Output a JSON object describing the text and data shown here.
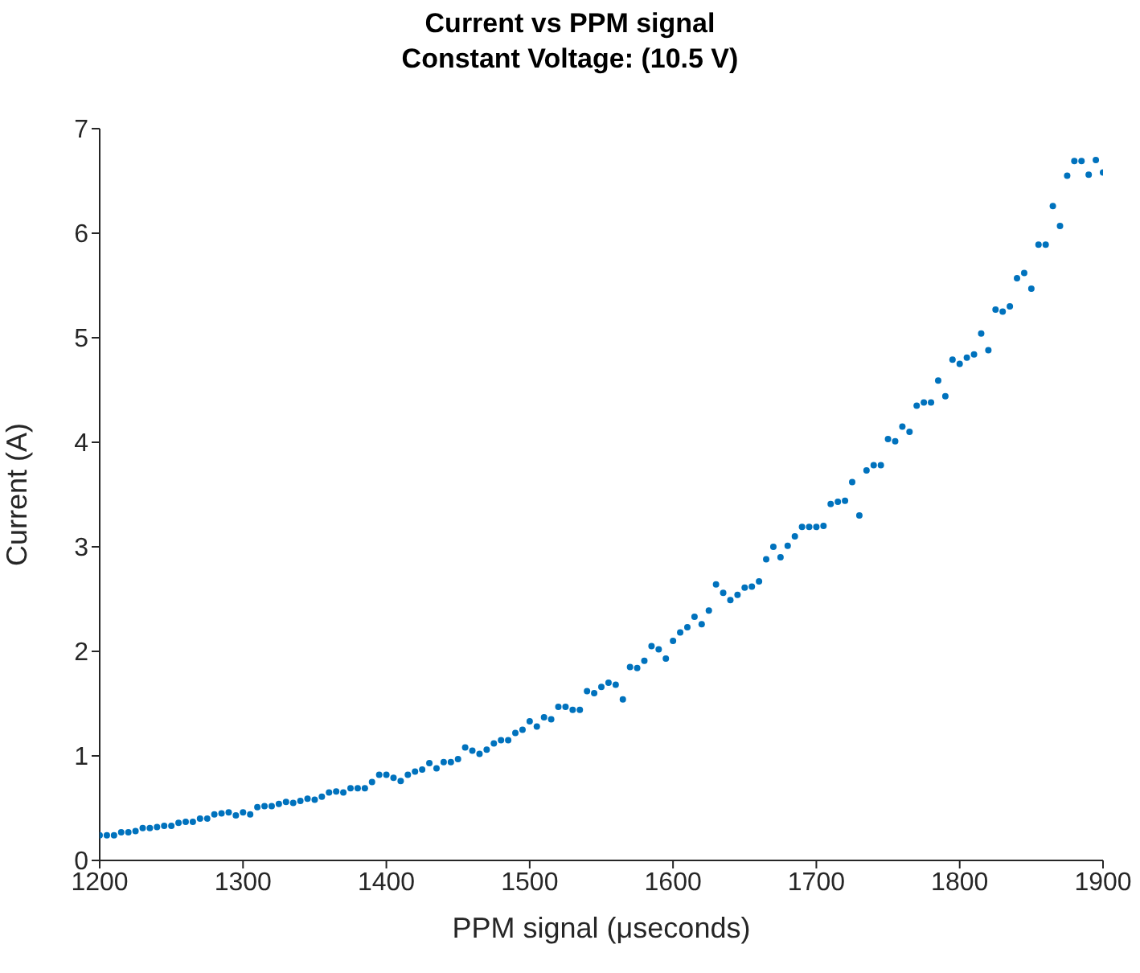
{
  "chart_data": {
    "type": "scatter",
    "title": "Current vs PPM signal",
    "subtitle": "Constant Voltage: (10.5 V)",
    "xlabel": "PPM signal (μseconds)",
    "ylabel": "Current (A)",
    "x": [
      1200,
      1205,
      1210,
      1215,
      1220,
      1225,
      1230,
      1235,
      1240,
      1245,
      1250,
      1255,
      1260,
      1265,
      1270,
      1275,
      1280,
      1285,
      1290,
      1295,
      1300,
      1305,
      1310,
      1315,
      1320,
      1325,
      1330,
      1335,
      1340,
      1345,
      1350,
      1355,
      1360,
      1365,
      1370,
      1375,
      1380,
      1385,
      1390,
      1395,
      1400,
      1405,
      1410,
      1415,
      1420,
      1425,
      1430,
      1435,
      1440,
      1445,
      1450,
      1455,
      1460,
      1465,
      1470,
      1475,
      1480,
      1485,
      1490,
      1495,
      1500,
      1505,
      1510,
      1515,
      1520,
      1525,
      1530,
      1535,
      1540,
      1545,
      1550,
      1555,
      1560,
      1565,
      1570,
      1575,
      1580,
      1585,
      1590,
      1595,
      1600,
      1605,
      1610,
      1615,
      1620,
      1625,
      1630,
      1635,
      1640,
      1645,
      1650,
      1655,
      1660,
      1665,
      1670,
      1675,
      1680,
      1685,
      1690,
      1695,
      1700,
      1705,
      1710,
      1715,
      1720,
      1725,
      1730,
      1735,
      1740,
      1745,
      1750,
      1755,
      1760,
      1765,
      1770,
      1775,
      1780,
      1785,
      1790,
      1795,
      1800,
      1805,
      1810,
      1815,
      1820,
      1825,
      1830,
      1835,
      1840,
      1845,
      1850,
      1855,
      1860,
      1865,
      1870,
      1875,
      1880,
      1885,
      1890,
      1895,
      1900
    ],
    "series": [
      {
        "color": "#0072bd",
        "values": [
          0.24,
          0.24,
          0.24,
          0.27,
          0.27,
          0.28,
          0.31,
          0.31,
          0.32,
          0.33,
          0.33,
          0.36,
          0.37,
          0.37,
          0.4,
          0.4,
          0.44,
          0.45,
          0.46,
          0.43,
          0.46,
          0.44,
          0.51,
          0.52,
          0.52,
          0.54,
          0.56,
          0.55,
          0.57,
          0.59,
          0.58,
          0.61,
          0.65,
          0.66,
          0.65,
          0.69,
          0.69,
          0.69,
          0.75,
          0.82,
          0.82,
          0.79,
          0.76,
          0.82,
          0.85,
          0.87,
          0.93,
          0.88,
          0.94,
          0.94,
          0.97,
          1.08,
          1.05,
          1.02,
          1.06,
          1.12,
          1.15,
          1.15,
          1.22,
          1.25,
          1.33,
          1.28,
          1.37,
          1.35,
          1.47,
          1.47,
          1.44,
          1.44,
          1.62,
          1.6,
          1.66,
          1.7,
          1.68,
          1.54,
          1.85,
          1.84,
          1.91,
          2.05,
          2.02,
          1.93,
          2.1,
          2.18,
          2.23,
          2.33,
          2.26,
          2.39,
          2.64,
          2.56,
          2.49,
          2.54,
          2.61,
          2.62,
          2.67,
          2.88,
          3.0,
          2.9,
          3.01,
          3.1,
          3.19,
          3.19,
          3.19,
          3.2,
          3.41,
          3.43,
          3.44,
          3.62,
          3.3,
          3.73,
          3.78,
          3.78,
          4.03,
          4.01,
          4.15,
          4.1,
          4.35,
          4.38,
          4.38,
          4.59,
          4.44,
          4.79,
          4.75,
          4.81,
          4.84,
          5.04,
          4.88,
          5.27,
          5.25,
          5.3,
          5.57,
          5.62,
          5.47,
          5.89,
          5.89,
          6.26,
          6.07,
          6.55,
          6.69,
          6.69,
          6.56,
          6.7,
          6.58
        ]
      }
    ],
    "xlim": [
      1200,
      1900
    ],
    "xticks": [
      1200,
      1300,
      1400,
      1500,
      1600,
      1700,
      1800,
      1900
    ],
    "ylim": [
      0,
      7
    ],
    "yticks": [
      0,
      1,
      2,
      3,
      4,
      5,
      6,
      7
    ],
    "marker": "circle",
    "grid": false
  }
}
